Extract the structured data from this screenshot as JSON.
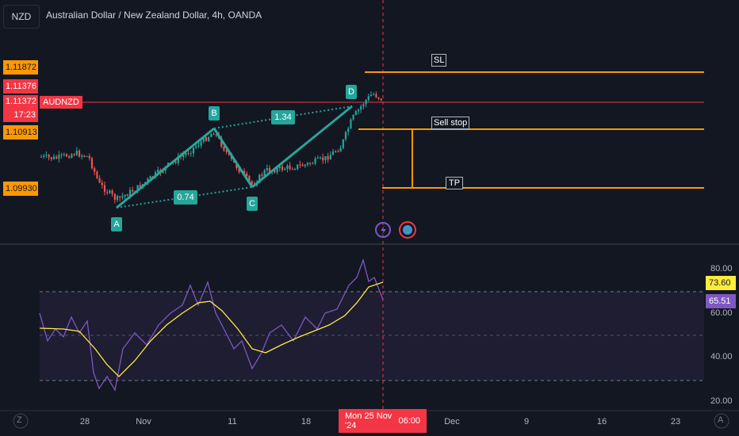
{
  "header": {
    "symbol_button": "NZD",
    "title": "Australian Dollar / New Zealand Dollar, 4h, OANDA"
  },
  "price_labels_left": [
    {
      "value": "1.11872",
      "color": "#ff9800"
    },
    {
      "value": "1.11376",
      "color": "#f23645"
    },
    {
      "value": "1.11372",
      "color": "#f23645"
    },
    {
      "value": "17:23",
      "color": "#f23645"
    },
    {
      "value": "1.10913",
      "color": "#ff9800"
    },
    {
      "value": "1.09930",
      "color": "#ff9800"
    }
  ],
  "current_price_tag": "AUDNZD",
  "pattern": {
    "points": [
      "A",
      "B",
      "C",
      "D"
    ],
    "ratio_ab": "0.74",
    "ratio_bd": "1.34",
    "color": "#26a69a"
  },
  "levels": {
    "sl_label": "SL",
    "sell_stop_label": "Sell stop",
    "tp_label": "TP",
    "color": "#ff9800"
  },
  "rsi": {
    "axis_ticks": [
      "80.00",
      "60.00",
      "40.00",
      "20.00"
    ],
    "value_ma": "73.60",
    "value_rsi": "65.51",
    "ma_color": "#ffeb3b",
    "rsi_color": "#7e57c2"
  },
  "time_axis": {
    "left_icon": "Z",
    "right_icon": "A",
    "ticks": [
      "28",
      "Nov",
      "11",
      "18",
      "Dec",
      "9",
      "16",
      "23"
    ],
    "crosshair_date": "Mon 25 Nov '24",
    "crosshair_time": "06:00"
  },
  "events": [
    "lightning-event-icon",
    "news-event-icon"
  ]
}
